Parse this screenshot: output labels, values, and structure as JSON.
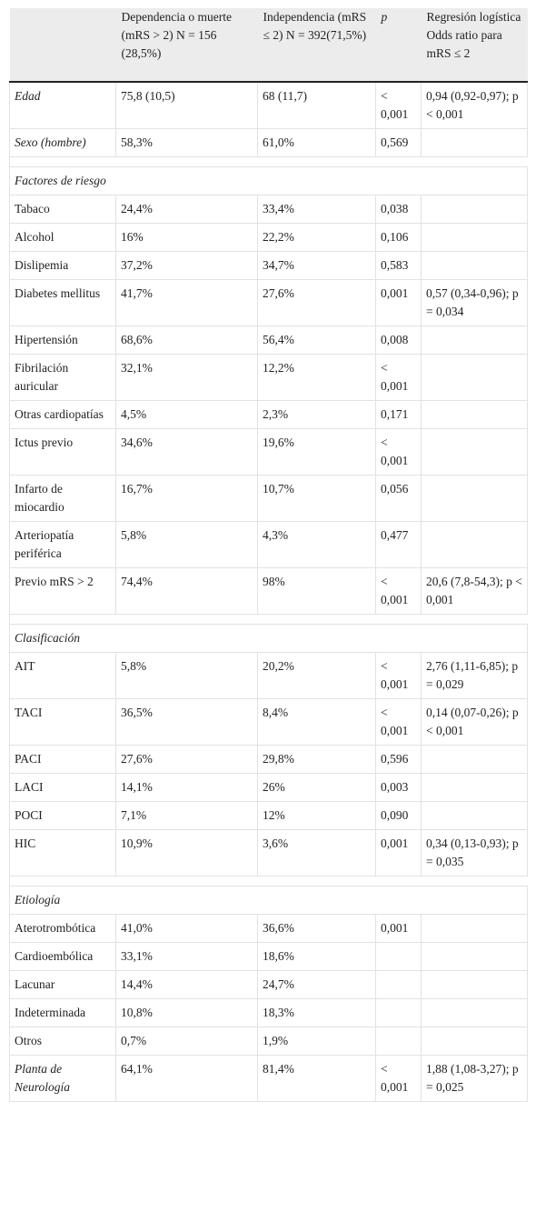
{
  "header": {
    "col1": "",
    "col2": "Dependencia o muerte (mRS > 2) N = 156 (28,5%)",
    "col3": "Independencia (mRS ≤ 2) N = 392(71,5%)",
    "col4": "p",
    "col5": "Regresión logística Odds ratio para mRS ≤ 2"
  },
  "rows": [
    {
      "label": "Edad",
      "dep": "75,8 (10,5)",
      "ind": "68 (11,7)",
      "p": "< 0,001",
      "or": "0,94 (0,92-0,97); p < 0,001"
    },
    {
      "label": "Sexo (hombre)",
      "dep": "58,3%",
      "ind": "61,0%",
      "p": "0,569",
      "or": ""
    },
    {
      "section": "Factores de riesgo"
    },
    {
      "label": "Tabaco",
      "dep": "24,4%",
      "ind": "33,4%",
      "p": "0,038",
      "or": ""
    },
    {
      "label": "Alcohol",
      "dep": "16%",
      "ind": "22,2%",
      "p": "0,106",
      "or": ""
    },
    {
      "label": "Dislipemia",
      "dep": "37,2%",
      "ind": "34,7%",
      "p": "0,583",
      "or": ""
    },
    {
      "label": "Diabetes mellitus",
      "dep": "41,7%",
      "ind": "27,6%",
      "p": "0,001",
      "or": "0,57 (0,34-0,96); p = 0,034"
    },
    {
      "label": "Hipertensión",
      "dep": "68,6%",
      "ind": "56,4%",
      "p": "0,008",
      "or": ""
    },
    {
      "label": "Fibrilación auricular",
      "dep": "32,1%",
      "ind": "12,2%",
      "p": "< 0,001",
      "or": ""
    },
    {
      "label": "Otras cardiopatías",
      "dep": "4,5%",
      "ind": "2,3%",
      "p": "0,171",
      "or": ""
    },
    {
      "label": "Ictus previo",
      "dep": "34,6%",
      "ind": "19,6%",
      "p": "< 0,001",
      "or": ""
    },
    {
      "label": "Infarto de miocardio",
      "dep": "16,7%",
      "ind": "10,7%",
      "p": "0,056",
      "or": ""
    },
    {
      "label": "Arteriopatía periférica",
      "dep": "5,8%",
      "ind": "4,3%",
      "p": "0,477",
      "or": ""
    },
    {
      "label": "Previo mRS > 2",
      "dep": "74,4%",
      "ind": "98%",
      "p": "< 0,001",
      "or": "20,6 (7,8-54,3); p < 0,001"
    },
    {
      "section": "Clasificación"
    },
    {
      "label": "AIT",
      "dep": "5,8%",
      "ind": "20,2%",
      "p": "< 0,001",
      "or": "2,76 (1,11-6,85); p = 0,029"
    },
    {
      "label": "TACI",
      "dep": "36,5%",
      "ind": "8,4%",
      "p": "< 0,001",
      "or": "0,14 (0,07-0,26); p < 0,001"
    },
    {
      "label": "PACI",
      "dep": "27,6%",
      "ind": "29,8%",
      "p": "0,596",
      "or": ""
    },
    {
      "label": "LACI",
      "dep": "14,1%",
      "ind": "26%",
      "p": "0,003",
      "or": ""
    },
    {
      "label": "POCI",
      "dep": "7,1%",
      "ind": "12%",
      "p": "0,090",
      "or": ""
    },
    {
      "label": "HIC",
      "dep": "10,9%",
      "ind": "3,6%",
      "p": "0,001",
      "or": "0,34 (0,13-0,93); p = 0,035"
    },
    {
      "section": "Etiología"
    },
    {
      "label": "Aterotrombótica",
      "dep": "41,0%",
      "ind": "36,6%",
      "p": "0,001",
      "or": ""
    },
    {
      "label": "Cardioembólica",
      "dep": "33,1%",
      "ind": "18,6%",
      "p": "",
      "or": ""
    },
    {
      "label": "Lacunar",
      "dep": "14,4%",
      "ind": "24,7%",
      "p": "",
      "or": ""
    },
    {
      "label": "Indeterminada",
      "dep": "10,8%",
      "ind": "18,3%",
      "p": "",
      "or": ""
    },
    {
      "label": "Otros",
      "dep": "0,7%",
      "ind": "1,9%",
      "p": "",
      "or": ""
    },
    {
      "label": "Planta de Neurología",
      "dep": "64,1%",
      "ind": "81,4%",
      "p": "< 0,001",
      "or": "1,88 (1,08-3,27); p = 0,025"
    }
  ]
}
